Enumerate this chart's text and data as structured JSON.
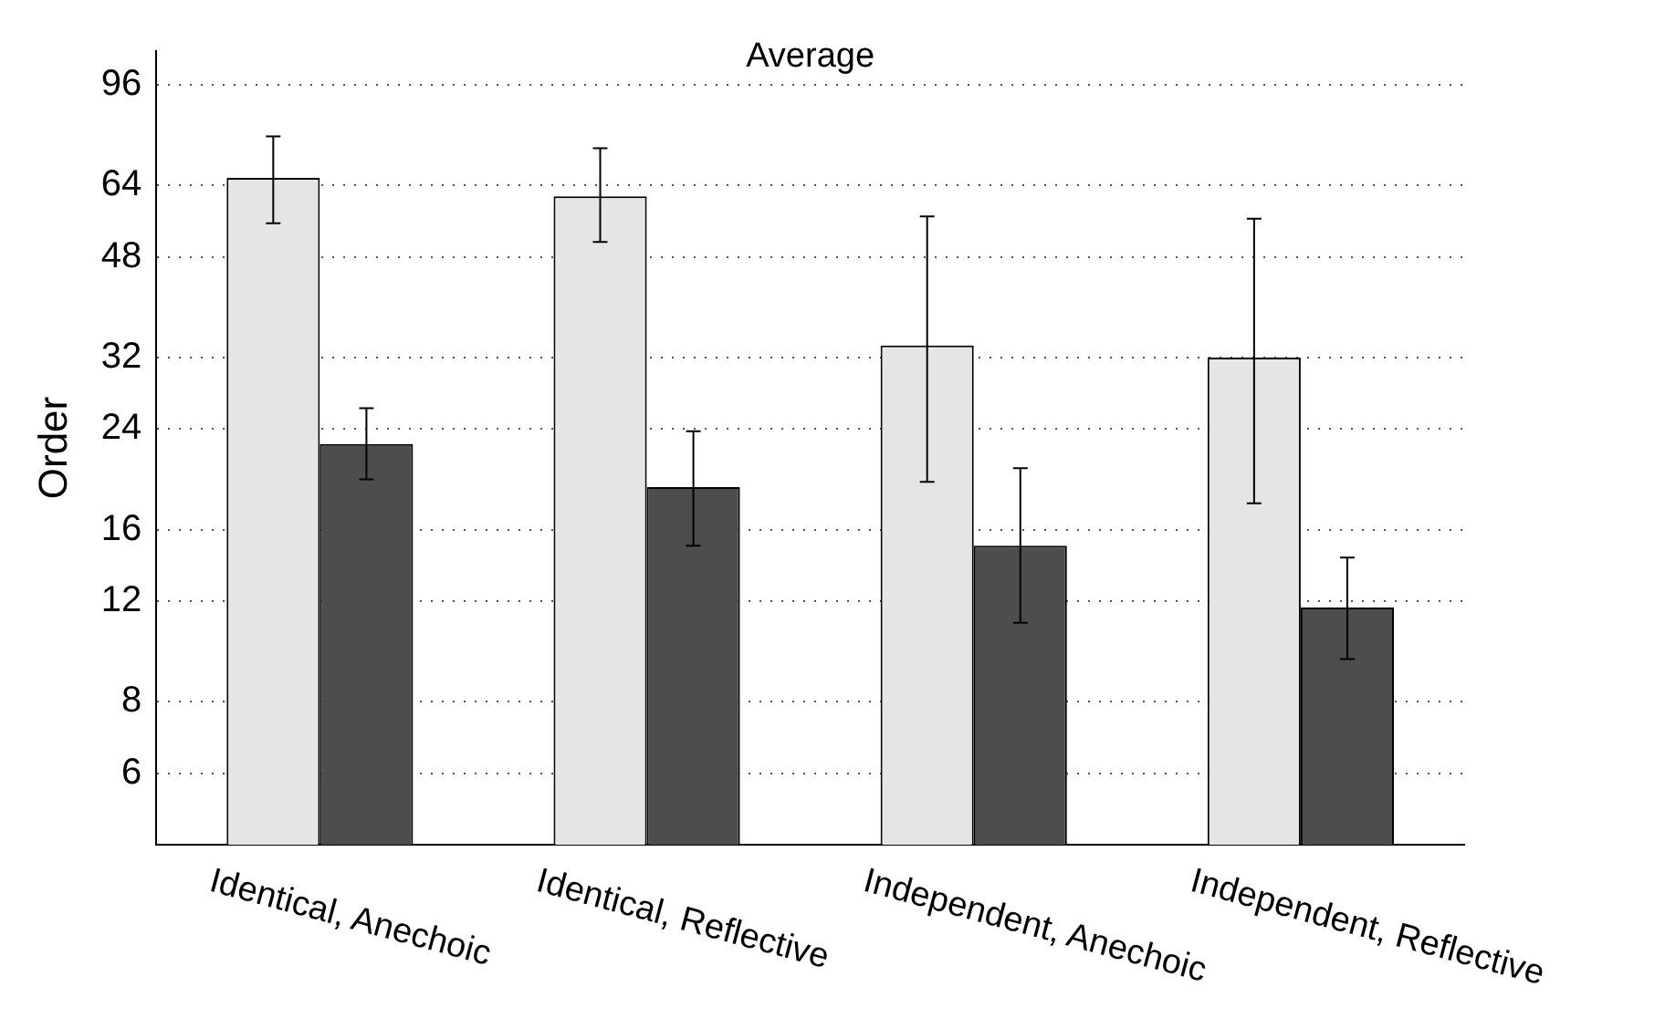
{
  "chart_data": {
    "type": "bar",
    "title": "Average",
    "ylabel": "Order",
    "log": "y",
    "categories": [
      "Identical, Anechoic",
      "Identical, Reflective",
      "Independent, Anechoic",
      "Independent, Reflective"
    ],
    "series": [
      {
        "color": "#e5e5e5",
        "values": [
          66,
          61.3,
          33.6,
          32
        ],
        "errors": [
          [
            55,
            78
          ],
          [
            51,
            74.4
          ],
          [
            19.4,
            56.5
          ],
          [
            17.8,
            56
          ]
        ]
      },
      {
        "color": "#4d4d4d",
        "values": [
          22.6,
          19,
          15,
          11.7
        ],
        "errors": [
          [
            19.6,
            26.1
          ],
          [
            15,
            23.8
          ],
          [
            11,
            20.5
          ],
          [
            9.5,
            14.3
          ]
        ]
      }
    ],
    "ylim": [
      4.5,
      110
    ],
    "yticks": [
      6,
      8,
      12,
      16,
      24,
      32,
      48,
      64,
      96
    ],
    "grid": "y",
    "legend": false
  }
}
